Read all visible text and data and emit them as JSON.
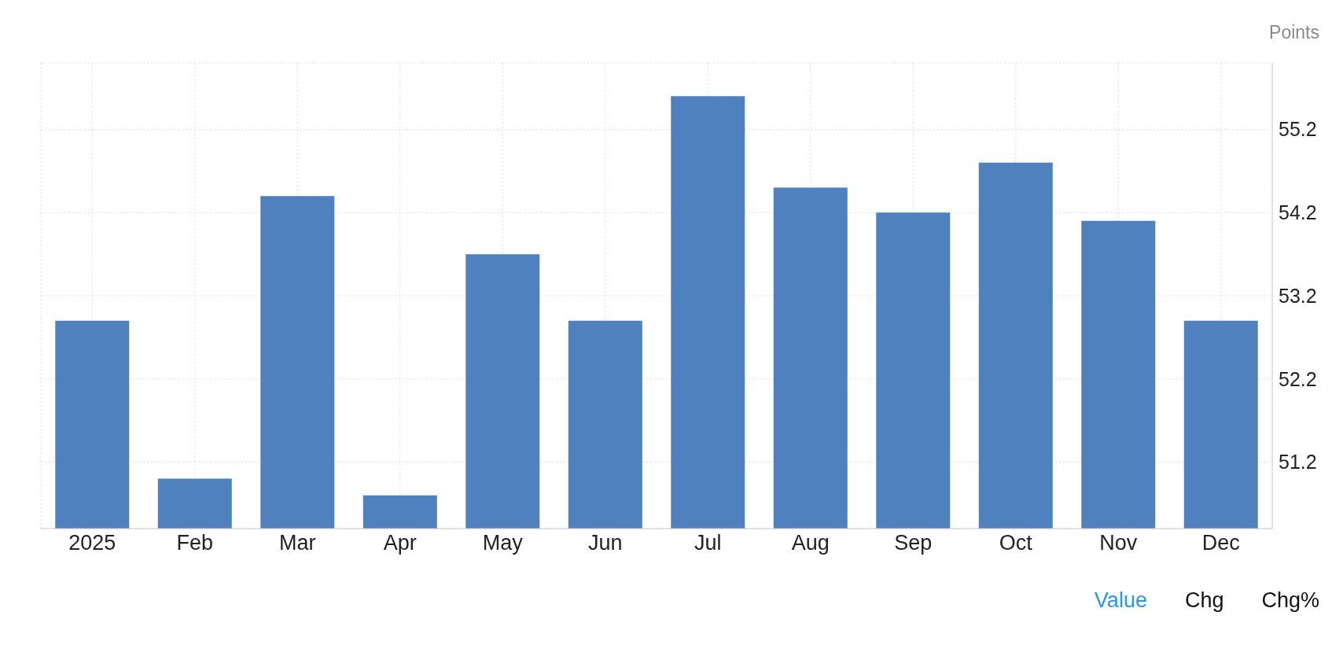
{
  "chart_data": {
    "type": "bar",
    "ylabel": "Points",
    "categories": [
      "2025",
      "Feb",
      "Mar",
      "Apr",
      "May",
      "Jun",
      "Jul",
      "Aug",
      "Sep",
      "Oct",
      "Nov",
      "Dec"
    ],
    "values": [
      52.9,
      51.0,
      54.4,
      50.8,
      53.7,
      52.9,
      55.6,
      54.5,
      54.2,
      54.8,
      54.1,
      52.9
    ],
    "color": "#4e81bd",
    "ylim": [
      50.4,
      56.0
    ],
    "yticks": [
      51.2,
      52.2,
      53.2,
      54.2,
      55.2
    ],
    "grid": true,
    "annotations": [
      "Value",
      "Chg",
      "Chg%"
    ]
  }
}
